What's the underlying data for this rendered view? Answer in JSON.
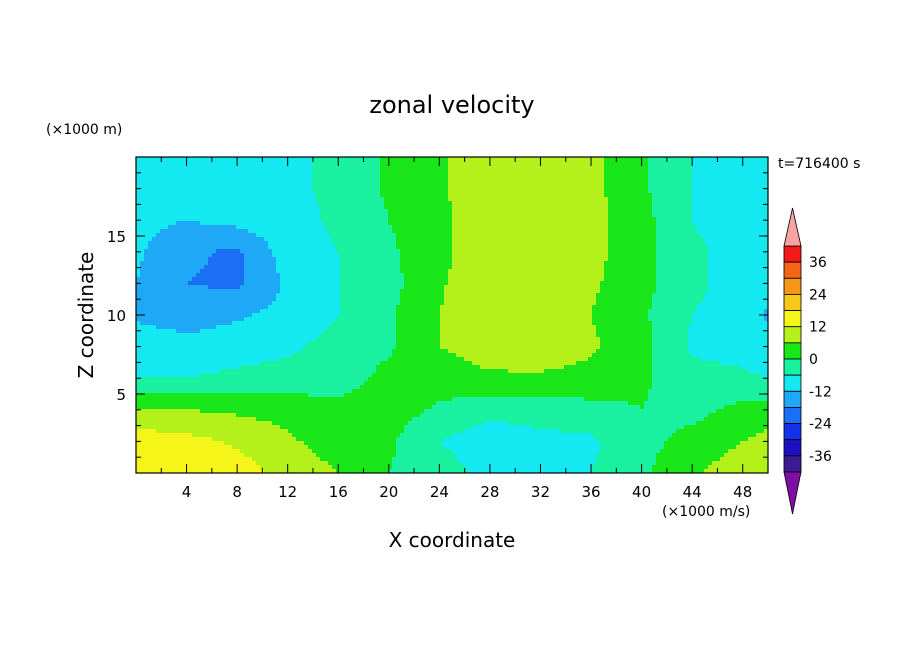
{
  "chart_data": {
    "type": "heatmap",
    "title": "zonal velocity",
    "xlabel": "X coordinate",
    "ylabel": "Z coordinate",
    "x_unit": "(×1000 m/s)",
    "y_unit": "(×1000 m)",
    "time_label": "t=716400 s",
    "xlim": [
      0,
      50
    ],
    "ylim": [
      0,
      20
    ],
    "xticks": [
      "4",
      "8",
      "12",
      "16",
      "20",
      "24",
      "28",
      "32",
      "36",
      "40",
      "44",
      "48"
    ],
    "yticks": [
      "5",
      "10",
      "15"
    ],
    "colorbar": {
      "levels": [
        -42,
        -36,
        -30,
        -24,
        -18,
        -12,
        -6,
        0,
        6,
        12,
        18,
        24,
        30,
        36,
        42
      ],
      "tick_labels": [
        "36",
        "24",
        "12",
        "0",
        "-12",
        "-24",
        "-36"
      ],
      "colors": [
        "#7d0fa3",
        "#3e1b91",
        "#1d10c0",
        "#1233e8",
        "#1a6ff5",
        "#1fa8f5",
        "#14e8f0",
        "#19f0a0",
        "#19e619",
        "#b4f019",
        "#f5f519",
        "#f5c819",
        "#f59619",
        "#f56419",
        "#f51919",
        "#f5a3a3"
      ],
      "extend": "both"
    },
    "field": {
      "x": [
        0,
        4,
        8,
        12,
        16,
        20,
        24,
        28,
        32,
        36,
        40,
        44,
        48,
        50
      ],
      "z": [
        0,
        2,
        4,
        6,
        8,
        10,
        12,
        14,
        16,
        18,
        20
      ],
      "u": [
        [
          18,
          17,
          15,
          10,
          6,
          0,
          -3,
          -8,
          -12,
          -6,
          -1,
          5,
          10,
          12
        ],
        [
          15,
          14,
          11,
          7,
          3,
          1,
          -6,
          -10,
          -8,
          -7,
          -2,
          2,
          6,
          8
        ],
        [
          7,
          6,
          5,
          4,
          2,
          3,
          -1,
          -4,
          -3,
          -2,
          0,
          -2,
          2,
          3
        ],
        [
          -6,
          -6,
          -5,
          -4,
          -3,
          2,
          3,
          5,
          5,
          4,
          1,
          -4,
          -5,
          -6
        ],
        [
          -8,
          -9,
          -8,
          -7,
          -4,
          -1,
          6,
          9,
          10,
          7,
          2,
          -7,
          -8,
          -10
        ],
        [
          -13,
          -16,
          -13,
          -10,
          -6,
          -1,
          6,
          11,
          12,
          6,
          1,
          -6,
          -8,
          -13
        ],
        [
          -12,
          -18,
          -19,
          -11,
          -6,
          -2,
          5,
          12,
          12,
          7,
          2,
          -5,
          -8,
          -10
        ],
        [
          -11,
          -17,
          -19,
          -9,
          -6,
          -1,
          4,
          11,
          12,
          8,
          2,
          -5,
          -8,
          -9
        ],
        [
          -10,
          -12,
          -10,
          -8,
          -5,
          0,
          4,
          11,
          11,
          8,
          2,
          -6,
          -9,
          -9
        ],
        [
          -9,
          -10,
          -9,
          -7,
          -5,
          1,
          5,
          11,
          10,
          8,
          1,
          -6,
          -8,
          -8
        ],
        [
          -9,
          -10,
          -9,
          -7,
          -5,
          1,
          5,
          11,
          10,
          8,
          1,
          -6,
          -8,
          -8
        ]
      ]
    }
  }
}
